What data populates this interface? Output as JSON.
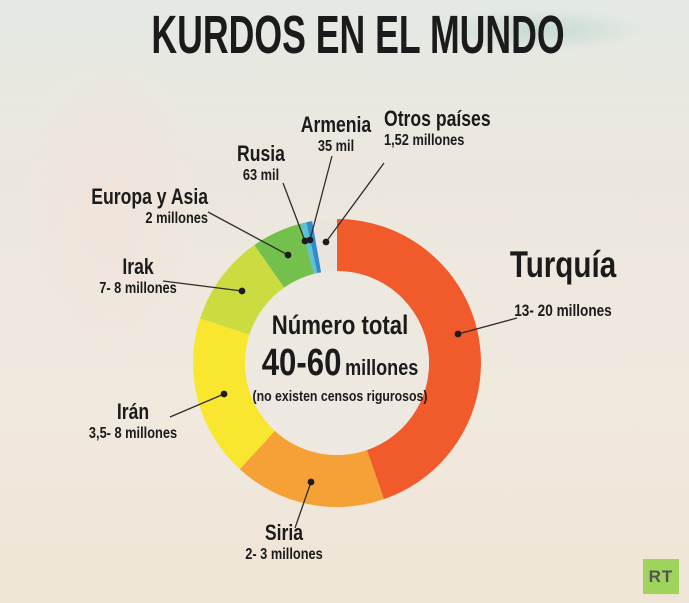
{
  "title": "KURDOS EN EL MUNDO",
  "brand": {
    "logo_text": "RT",
    "logo_bg": "#9ed45c",
    "logo_fg": "#515254"
  },
  "colors": {
    "text": "#1b1b1b",
    "callout_line": "#2d2d2d",
    "callout_dot": "#1d1d1d",
    "donut_hole": "#ede8e0",
    "background_base": "#efe8de"
  },
  "chart_data": {
    "type": "donut",
    "title": "KURDOS EN EL MUNDO",
    "legend_position": "callout-labels-around-ring",
    "start_angle": "12-oclock, clockwise",
    "center": {
      "line1": "Número total",
      "value": "40-60",
      "unit": "millones",
      "note": "(no existen censos rigurosos)"
    },
    "segments": [
      {
        "label": "Turquía",
        "value": "13- 20 millones",
        "color": "#f15b2b",
        "start_deg": 0,
        "end_deg": 161
      },
      {
        "label": "Siria",
        "value": "2- 3 millones",
        "color": "#f6a135",
        "start_deg": 161,
        "end_deg": 222.5
      },
      {
        "label": "Irán",
        "value": "3,5- 8 millones",
        "color": "#f8e72e",
        "start_deg": 222.5,
        "end_deg": 288
      },
      {
        "label": "Irak",
        "value": "7- 8 millones",
        "color": "#cbdc40",
        "start_deg": 288,
        "end_deg": 325
      },
      {
        "label": "Europa y Asia",
        "value": "2 millones",
        "color": "#73c04c",
        "start_deg": 325,
        "end_deg": 345.4
      },
      {
        "label": "Rusia",
        "value": "63 mil",
        "color": "#5cc2d6",
        "start_deg": 345.4,
        "end_deg": 347.7
      },
      {
        "label": "Armenia",
        "value": "35 mil",
        "color": "#348bc9",
        "start_deg": 347.7,
        "end_deg": 350.1
      },
      {
        "label": "Otros países",
        "value": "1,52 millones",
        "color": "#e9e5de",
        "start_deg": 350.1,
        "end_deg": 360
      }
    ]
  }
}
